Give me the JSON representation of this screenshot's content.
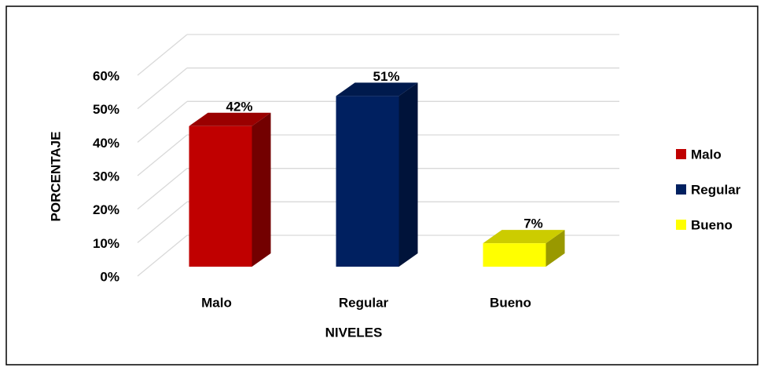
{
  "chart_data": {
    "type": "bar3d",
    "categories": [
      "Malo",
      "Regular",
      "Bueno"
    ],
    "values": [
      42,
      51,
      7
    ],
    "value_labels": [
      "42%",
      "51%",
      "7%"
    ],
    "colors": [
      "#c00000",
      "#002060",
      "#ffff00"
    ],
    "ylim": [
      0,
      60
    ],
    "yticks": [
      {
        "value": 0,
        "label": "0%"
      },
      {
        "value": 10,
        "label": "10%"
      },
      {
        "value": 20,
        "label": "20%"
      },
      {
        "value": 30,
        "label": "30%"
      },
      {
        "value": 40,
        "label": "40%"
      },
      {
        "value": 50,
        "label": "50%"
      },
      {
        "value": 60,
        "label": "60%"
      }
    ],
    "y_label": "PORCENTAJE",
    "x_label": "NIVELES",
    "grid": true,
    "legend": "right"
  }
}
